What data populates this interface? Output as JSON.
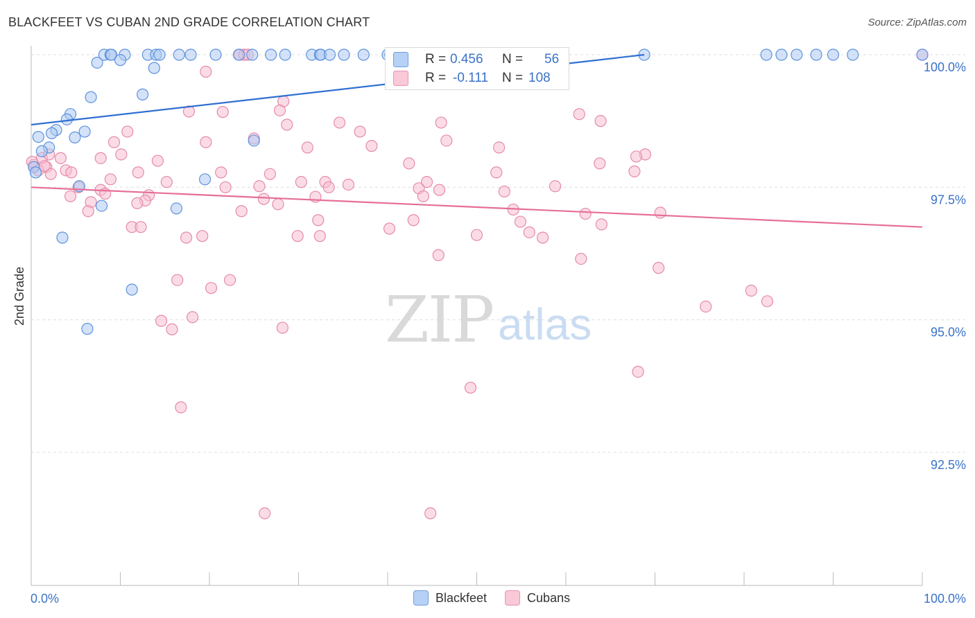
{
  "title": "BLACKFEET VS CUBAN 2ND GRADE CORRELATION CHART",
  "source": "Source: ZipAtlas.com",
  "watermark": {
    "zip": "ZIP",
    "atlas": "atlas"
  },
  "legend": {
    "items": [
      {
        "label": "Blackfeet",
        "fill": "#b7d0f5",
        "stroke": "#6f9ee0"
      },
      {
        "label": "Cubans",
        "fill": "#f9c9d8",
        "stroke": "#e893b0"
      }
    ]
  },
  "stats": {
    "blackfeet": {
      "r_label": "R =",
      "r_value": "0.456",
      "n_label": "N =",
      "n_value": "56"
    },
    "cubans": {
      "r_label": "R =",
      "r_value": "-0.111",
      "n_label": "N =",
      "n_value": "108"
    }
  },
  "colors": {
    "blue_line": "#2f6fd1",
    "pink_line": "#e66e98",
    "blue_fill": "#aecbf3",
    "blue_stroke": "#5e92dc",
    "pink_fill": "#f7bfd2",
    "pink_stroke": "#e58aab",
    "value_blue": "#3a72c8",
    "tick_label": "#3a72c8"
  },
  "chart_data": {
    "type": "scatter",
    "title": "BLACKFEET VS CUBAN 2ND GRADE CORRELATION CHART",
    "xlabel": "",
    "ylabel": "2nd Grade",
    "xlim": [
      0,
      100
    ],
    "ylim": [
      90.0,
      100.3
    ],
    "x_tick_labels": [
      "0.0%",
      "100.0%"
    ],
    "y_ticks": [
      92.5,
      95.0,
      97.5,
      100.0
    ],
    "y_tick_labels": [
      "92.5%",
      "95.0%",
      "97.5%",
      "100.0%"
    ],
    "grid": "horizontal dashed",
    "legend_position": "bottom-center",
    "series": [
      {
        "name": "Blackfeet",
        "trend": {
          "x": [
            0,
            68.8
          ],
          "y": [
            98.68,
            100.0
          ]
        },
        "points": [
          [
            8.2,
            100.0
          ],
          [
            8.9,
            100.0
          ],
          [
            9.0,
            100.0
          ],
          [
            10.5,
            100.0
          ],
          [
            13.1,
            100.0
          ],
          [
            14.0,
            100.0
          ],
          [
            14.4,
            100.0
          ],
          [
            16.6,
            100.0
          ],
          [
            17.9,
            100.0
          ],
          [
            20.7,
            100.0
          ],
          [
            23.3,
            100.0
          ],
          [
            24.8,
            100.0
          ],
          [
            26.9,
            100.0
          ],
          [
            28.5,
            100.0
          ],
          [
            31.5,
            100.0
          ],
          [
            32.4,
            100.0
          ],
          [
            32.5,
            100.0
          ],
          [
            33.5,
            100.0
          ],
          [
            35.1,
            100.0
          ],
          [
            37.3,
            100.0
          ],
          [
            40.0,
            100.0
          ],
          [
            40.3,
            100.0
          ],
          [
            42.1,
            100.0
          ],
          [
            47.2,
            100.0
          ],
          [
            68.8,
            100.0
          ],
          [
            82.5,
            100.0
          ],
          [
            84.2,
            100.0
          ],
          [
            85.9,
            100.0
          ],
          [
            88.1,
            100.0
          ],
          [
            90.0,
            100.0
          ],
          [
            92.2,
            100.0
          ],
          [
            100.0,
            100.0
          ],
          [
            7.4,
            99.85
          ],
          [
            10.0,
            99.9
          ],
          [
            13.8,
            99.75
          ],
          [
            6.7,
            99.2
          ],
          [
            12.5,
            99.25
          ],
          [
            4.4,
            98.88
          ],
          [
            4.0,
            98.78
          ],
          [
            2.8,
            98.58
          ],
          [
            2.3,
            98.52
          ],
          [
            6.0,
            98.55
          ],
          [
            0.8,
            98.45
          ],
          [
            4.9,
            98.44
          ],
          [
            2.0,
            98.25
          ],
          [
            1.2,
            98.18
          ],
          [
            25.0,
            98.38
          ],
          [
            0.3,
            97.88
          ],
          [
            0.5,
            97.78
          ],
          [
            19.5,
            97.65
          ],
          [
            5.4,
            97.52
          ],
          [
            7.9,
            97.15
          ],
          [
            16.3,
            97.1
          ],
          [
            3.5,
            96.55
          ],
          [
            11.3,
            95.57
          ],
          [
            6.3,
            94.83
          ]
        ]
      },
      {
        "name": "Cubans",
        "trend": {
          "x": [
            0,
            100
          ],
          "y": [
            97.5,
            96.75
          ]
        },
        "points": [
          [
            23.4,
            100.0
          ],
          [
            23.9,
            100.0
          ],
          [
            24.3,
            100.0
          ],
          [
            100.0,
            100.0
          ],
          [
            19.6,
            99.68
          ],
          [
            28.3,
            99.12
          ],
          [
            27.9,
            98.95
          ],
          [
            21.5,
            98.92
          ],
          [
            17.7,
            98.93
          ],
          [
            61.5,
            98.88
          ],
          [
            63.9,
            98.75
          ],
          [
            34.6,
            98.72
          ],
          [
            46.0,
            98.72
          ],
          [
            28.7,
            98.68
          ],
          [
            36.9,
            98.55
          ],
          [
            10.8,
            98.55
          ],
          [
            9.3,
            98.35
          ],
          [
            19.6,
            98.35
          ],
          [
            25.0,
            98.42
          ],
          [
            46.6,
            98.38
          ],
          [
            31.0,
            98.25
          ],
          [
            38.2,
            98.28
          ],
          [
            52.5,
            98.25
          ],
          [
            10.1,
            98.12
          ],
          [
            68.9,
            98.12
          ],
          [
            67.9,
            98.08
          ],
          [
            1.2,
            98.05
          ],
          [
            3.3,
            98.05
          ],
          [
            7.8,
            98.05
          ],
          [
            14.2,
            98.0
          ],
          [
            42.4,
            97.95
          ],
          [
            63.8,
            97.95
          ],
          [
            0.3,
            97.92
          ],
          [
            1.7,
            97.88
          ],
          [
            0.8,
            97.82
          ],
          [
            3.9,
            97.82
          ],
          [
            4.5,
            97.78
          ],
          [
            12.0,
            97.78
          ],
          [
            21.3,
            97.78
          ],
          [
            26.8,
            97.75
          ],
          [
            67.7,
            97.8
          ],
          [
            52.2,
            97.78
          ],
          [
            2.2,
            97.75
          ],
          [
            8.9,
            97.65
          ],
          [
            30.3,
            97.6
          ],
          [
            33.0,
            97.6
          ],
          [
            15.2,
            97.6
          ],
          [
            35.6,
            97.55
          ],
          [
            44.4,
            97.6
          ],
          [
            58.8,
            97.52
          ],
          [
            45.8,
            97.45
          ],
          [
            21.8,
            97.5
          ],
          [
            33.4,
            97.5
          ],
          [
            25.6,
            97.52
          ],
          [
            43.5,
            97.48
          ],
          [
            53.1,
            97.42
          ],
          [
            5.3,
            97.5
          ],
          [
            7.8,
            97.45
          ],
          [
            8.3,
            97.38
          ],
          [
            13.2,
            97.35
          ],
          [
            4.4,
            97.33
          ],
          [
            31.9,
            97.32
          ],
          [
            26.1,
            97.28
          ],
          [
            44.0,
            97.33
          ],
          [
            12.8,
            97.25
          ],
          [
            6.7,
            97.22
          ],
          [
            27.7,
            97.18
          ],
          [
            11.9,
            97.2
          ],
          [
            54.1,
            97.08
          ],
          [
            23.6,
            97.05
          ],
          [
            6.4,
            97.05
          ],
          [
            70.6,
            97.02
          ],
          [
            62.2,
            97.0
          ],
          [
            32.2,
            96.88
          ],
          [
            42.9,
            96.88
          ],
          [
            54.9,
            96.85
          ],
          [
            64.0,
            96.8
          ],
          [
            11.3,
            96.75
          ],
          [
            12.3,
            96.75
          ],
          [
            40.2,
            96.72
          ],
          [
            50.0,
            96.6
          ],
          [
            19.2,
            96.58
          ],
          [
            29.9,
            96.58
          ],
          [
            32.4,
            96.58
          ],
          [
            55.9,
            96.65
          ],
          [
            57.4,
            96.55
          ],
          [
            17.4,
            96.55
          ],
          [
            45.7,
            96.22
          ],
          [
            61.7,
            96.15
          ],
          [
            70.4,
            95.98
          ],
          [
            16.4,
            95.75
          ],
          [
            22.3,
            95.75
          ],
          [
            20.2,
            95.6
          ],
          [
            80.8,
            95.55
          ],
          [
            82.6,
            95.35
          ],
          [
            75.7,
            95.25
          ],
          [
            18.1,
            95.05
          ],
          [
            14.6,
            94.98
          ],
          [
            15.8,
            94.82
          ],
          [
            28.2,
            94.85
          ],
          [
            68.1,
            94.02
          ],
          [
            49.3,
            93.72
          ],
          [
            16.8,
            93.35
          ],
          [
            26.2,
            91.35
          ],
          [
            44.8,
            91.35
          ],
          [
            0.1,
            97.98
          ],
          [
            2.0,
            98.12
          ],
          [
            1.5,
            97.9
          ]
        ]
      }
    ]
  }
}
